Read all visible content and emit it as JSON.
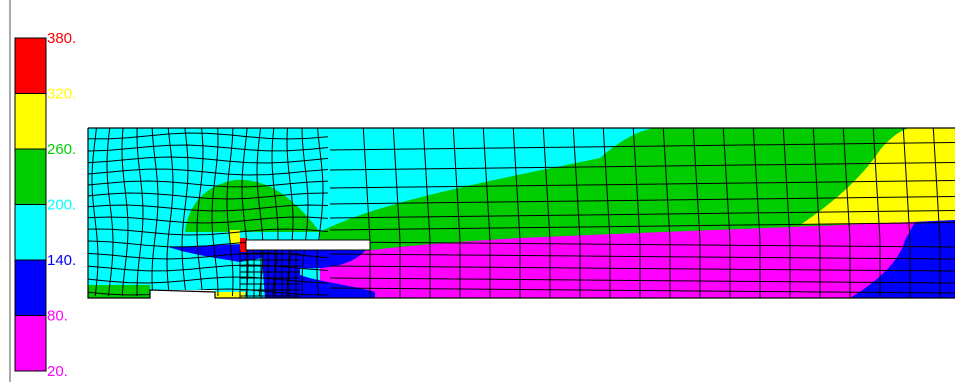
{
  "legend": {
    "bands": [
      {
        "from": 320,
        "to": 380,
        "color": "#ff0000"
      },
      {
        "from": 260,
        "to": 320,
        "color": "#ffff00"
      },
      {
        "from": 200,
        "to": 260,
        "color": "#00cc00"
      },
      {
        "from": 140,
        "to": 200,
        "color": "#00ffff"
      },
      {
        "from": 80,
        "to": 140,
        "color": "#0000ff"
      },
      {
        "from": 20,
        "to": 80,
        "color": "#ff00ff"
      }
    ],
    "labels": [
      {
        "text": "380.",
        "color": "#ff0000"
      },
      {
        "text": "320.",
        "color": "#ffff00"
      },
      {
        "text": "260.",
        "color": "#00cc00"
      },
      {
        "text": "200.",
        "color": "#00ffff"
      },
      {
        "text": "140.",
        "color": "#0000ff"
      },
      {
        "text": "80.",
        "color": "#ff00ff"
      },
      {
        "text": "20.",
        "color": "#ff00ff"
      }
    ]
  },
  "colors": {
    "cyan": "#00ffff",
    "green": "#00cc00",
    "yellow": "#ffff00",
    "blue": "#0000ff",
    "magenta": "#ff00ff",
    "red": "#ff0000",
    "mesh": "#000000",
    "weld_insert": "#ffffff"
  }
}
